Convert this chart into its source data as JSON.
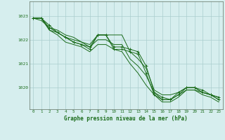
{
  "title": "Graphe pression niveau de la mer (hPa)",
  "background_color": "#d6eeee",
  "grid_color": "#aacece",
  "line_color": "#1a6b1a",
  "xlim": [
    -0.5,
    23.5
  ],
  "ylim": [
    1019.1,
    1023.6
  ],
  "yticks": [
    1020,
    1021,
    1022,
    1023
  ],
  "xticks": [
    0,
    1,
    2,
    3,
    4,
    5,
    6,
    7,
    8,
    9,
    10,
    11,
    12,
    13,
    14,
    15,
    16,
    17,
    18,
    19,
    20,
    21,
    22,
    23
  ],
  "series_with_markers": [
    [
      1022.9,
      1022.9,
      1022.6,
      1022.3,
      1022.1,
      1021.9,
      1021.8,
      1021.7,
      1022.2,
      1022.2,
      1021.7,
      1021.7,
      1021.6,
      1021.5,
      1020.9,
      1019.8,
      1019.6,
      1019.5,
      1019.8,
      1020.0,
      1020.0,
      1019.9,
      1019.7,
      1019.6
    ],
    [
      1022.9,
      1022.9,
      1022.5,
      1022.3,
      1022.1,
      1021.9,
      1021.8,
      1021.6,
      1022.2,
      1022.2,
      1021.6,
      1021.6,
      1021.5,
      1021.4,
      1020.6,
      1019.7,
      1019.5,
      1019.5,
      1019.7,
      1020.0,
      1020.0,
      1019.8,
      1019.7,
      1019.5
    ]
  ],
  "series_no_markers": [
    [
      1022.9,
      1022.9,
      1022.4,
      1022.2,
      1021.9,
      1021.8,
      1021.7,
      1021.5,
      1021.8,
      1021.8,
      1021.6,
      1021.5,
      1021.0,
      1020.6,
      1020.1,
      1019.7,
      1019.4,
      1019.4,
      1019.6,
      1019.9,
      1019.9,
      1019.8,
      1019.7,
      1019.6
    ],
    [
      1022.9,
      1022.8,
      1022.5,
      1022.4,
      1022.2,
      1022.1,
      1021.9,
      1021.8,
      1022.2,
      1022.2,
      1022.2,
      1022.2,
      1021.5,
      1021.2,
      1020.8,
      1019.9,
      1019.7,
      1019.7,
      1019.8,
      1020.0,
      1020.0,
      1019.8,
      1019.7,
      1019.5
    ],
    [
      1022.9,
      1022.9,
      1022.4,
      1022.3,
      1022.1,
      1022.0,
      1021.9,
      1021.7,
      1022.0,
      1022.0,
      1021.8,
      1021.8,
      1021.2,
      1020.9,
      1020.5,
      1019.8,
      1019.5,
      1019.5,
      1019.7,
      1019.9,
      1019.9,
      1019.7,
      1019.6,
      1019.4
    ]
  ]
}
